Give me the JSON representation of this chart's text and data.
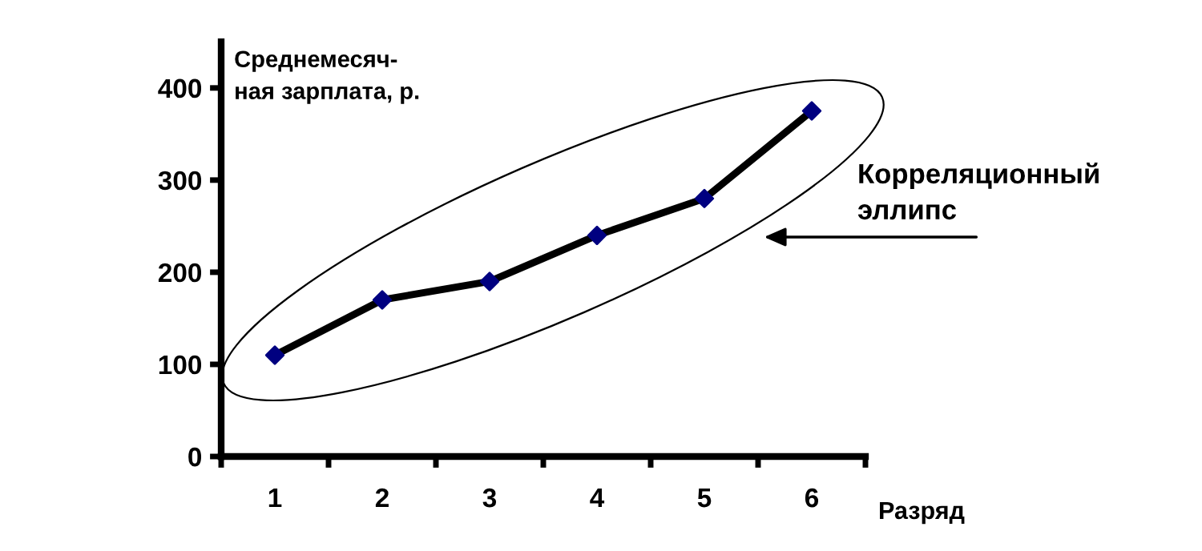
{
  "chart_data": {
    "type": "line",
    "categories": [
      "1",
      "2",
      "3",
      "4",
      "5",
      "6"
    ],
    "series": [
      {
        "color": "#000000",
        "colors": [
          "#000080",
          "#000080",
          "#000080",
          "#000080",
          "#000080",
          "#000080"
        ],
        "values": [
          110,
          170,
          190,
          240,
          280,
          375
        ]
      }
    ],
    "ylim": [
      0,
      450
    ],
    "yticks": [
      0,
      100,
      200,
      300,
      400
    ],
    "ylabel": "Среднемесяч-\nная зарплата, р.",
    "xlabel": "Разряд",
    "annotations": [
      "Корреляционный\nэллипс"
    ],
    "marker": "diamond",
    "line_style": "solid",
    "grid": false,
    "legend": false
  }
}
